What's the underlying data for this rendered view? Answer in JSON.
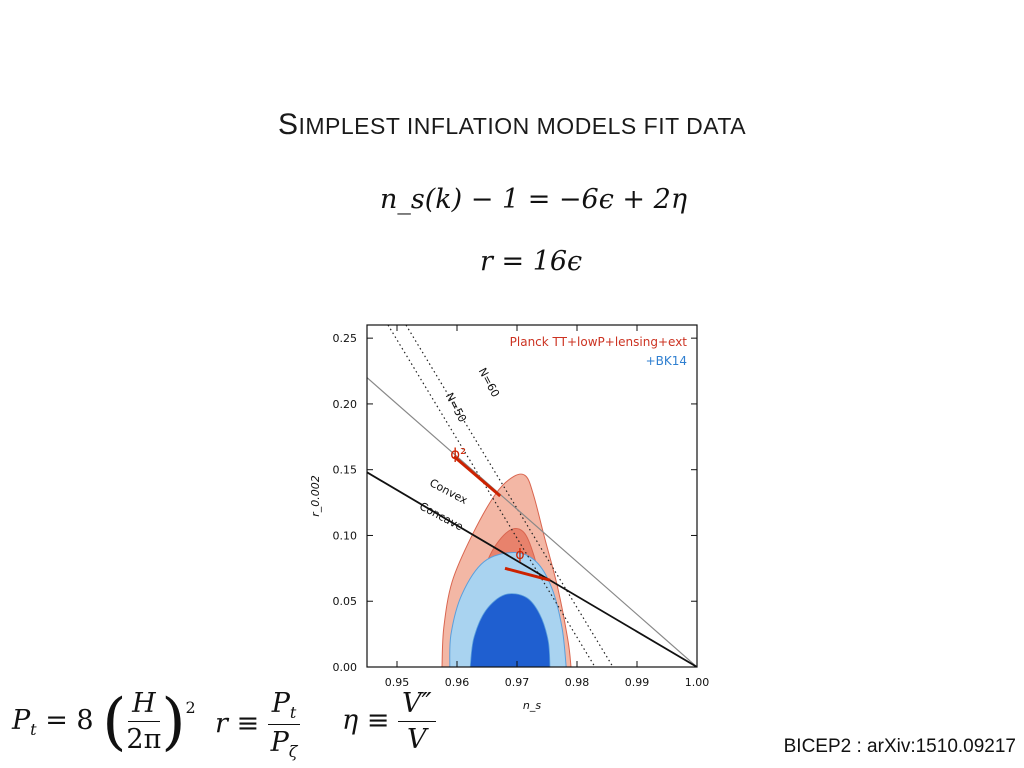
{
  "slide": {
    "title_first": "S",
    "title_rest": "implest inflation models fit data",
    "equation_ns": "n_s(k) − 1 = −6ϵ + 2η",
    "equation_r": "r = 16ϵ",
    "formula_Pt": {
      "lhs": "P",
      "lhs_sub": "t",
      "eq": "= 8",
      "num": "H",
      "den": "2π",
      "power": "2"
    },
    "formula_r": {
      "lhs": "r ≡",
      "num": "P",
      "num_sub": "t",
      "den": "P",
      "den_sub": "ζ"
    },
    "formula_eta": {
      "lhs": "η ≡",
      "num": "V″",
      "den": "V"
    },
    "citation": "BICEP2 : arXiv:1510.09217"
  },
  "chart_data": {
    "type": "scatter",
    "xlabel": "n_s",
    "ylabel": "r_0.002",
    "xlim": [
      0.945,
      1.0
    ],
    "ylim": [
      0.0,
      0.26
    ],
    "xticks": [
      "0.95",
      "0.96",
      "0.97",
      "0.98",
      "0.99",
      "1.00"
    ],
    "yticks": [
      "0.00",
      "0.05",
      "0.10",
      "0.15",
      "0.20",
      "0.25"
    ],
    "legend": [
      {
        "label": "Planck TT+lowP+lensing+ext",
        "color": "#cc3322"
      },
      {
        "label": "+BK14",
        "color": "#2f7fd0"
      }
    ],
    "contours": {
      "planck_95": [
        [
          0.9575,
          0
        ],
        [
          0.9578,
          0.03
        ],
        [
          0.9592,
          0.065
        ],
        [
          0.9625,
          0.1
        ],
        [
          0.9665,
          0.132
        ],
        [
          0.9695,
          0.145
        ],
        [
          0.9715,
          0.145
        ],
        [
          0.9728,
          0.13
        ],
        [
          0.9745,
          0.1
        ],
        [
          0.9768,
          0.06
        ],
        [
          0.9785,
          0.02
        ],
        [
          0.979,
          0
        ]
      ],
      "planck_68": [
        [
          0.962,
          0
        ],
        [
          0.9622,
          0.025
        ],
        [
          0.9635,
          0.055
        ],
        [
          0.9655,
          0.085
        ],
        [
          0.9685,
          0.103
        ],
        [
          0.971,
          0.103
        ],
        [
          0.9728,
          0.085
        ],
        [
          0.9743,
          0.055
        ],
        [
          0.9755,
          0.025
        ],
        [
          0.9758,
          0
        ]
      ],
      "bk14_95": [
        [
          0.9588,
          0
        ],
        [
          0.959,
          0.025
        ],
        [
          0.9608,
          0.055
        ],
        [
          0.9645,
          0.08
        ],
        [
          0.9695,
          0.087
        ],
        [
          0.9732,
          0.08
        ],
        [
          0.9758,
          0.06
        ],
        [
          0.9775,
          0.03
        ],
        [
          0.9782,
          0
        ]
      ],
      "bk14_68": [
        [
          0.9622,
          0
        ],
        [
          0.9628,
          0.022
        ],
        [
          0.9648,
          0.043
        ],
        [
          0.968,
          0.055
        ],
        [
          0.9715,
          0.053
        ],
        [
          0.9738,
          0.04
        ],
        [
          0.9752,
          0.02
        ],
        [
          0.9755,
          0
        ]
      ]
    },
    "lines": {
      "convex_concave": {
        "label_upper": "Convex",
        "label_lower": "Concave",
        "points": [
          [
            0.945,
            0.148
          ],
          [
            1.0,
            0.0
          ]
        ],
        "color": "#111111"
      },
      "phi_squared_line": {
        "points": [
          [
            0.945,
            0.22
          ],
          [
            1.0,
            0.0
          ]
        ],
        "color": "#888888"
      },
      "N50": {
        "label": "N=50",
        "points": [
          [
            0.9485,
            0.26
          ],
          [
            0.983,
            0.0
          ]
        ]
      },
      "N60": {
        "label": "N=60",
        "points": [
          [
            0.9515,
            0.26
          ],
          [
            0.986,
            0.0
          ]
        ]
      },
      "phi2_segment": {
        "label": "ϕ²",
        "points": [
          [
            0.9595,
            0.16
          ],
          [
            0.9672,
            0.13
          ]
        ],
        "color": "#cc2200"
      },
      "phi_segment": {
        "label": "ϕ",
        "points": [
          [
            0.968,
            0.075
          ],
          [
            0.9755,
            0.066
          ]
        ],
        "color": "#cc2200"
      }
    },
    "colors": {
      "planck_95": "#f3b7a5",
      "planck_68": "#e8826c",
      "planck_edge": "#d9654f",
      "bk14_95": "#a9d3f0",
      "bk14_68": "#1f5fd0",
      "bk14_edge": "#5a9fdc"
    }
  }
}
